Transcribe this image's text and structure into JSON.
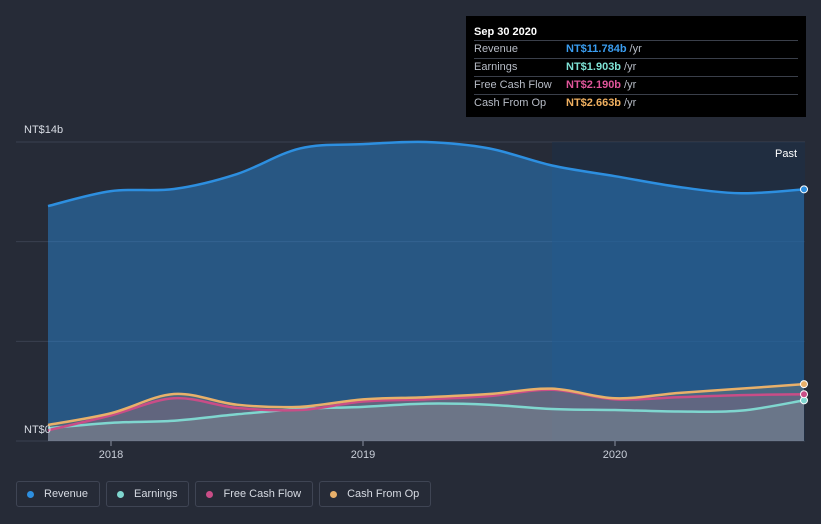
{
  "colors": {
    "revenue": "#2d8fe0",
    "earnings": "#7fd6cf",
    "free_cash_flow": "#c94d87",
    "cash_from_op": "#e8b06a",
    "grid": "#3a4050",
    "past_shade": "#1b2f48"
  },
  "tooltip": {
    "date": "Sep 30 2020",
    "rows": [
      {
        "name": "Revenue",
        "value": "NT$11.784b",
        "unit": "/yr",
        "color": "#3a9df0"
      },
      {
        "name": "Earnings",
        "value": "NT$1.903b",
        "unit": "/yr",
        "color": "#7fe3d6"
      },
      {
        "name": "Free Cash Flow",
        "value": "NT$2.190b",
        "unit": "/yr",
        "color": "#e0559a"
      },
      {
        "name": "Cash From Op",
        "value": "NT$2.663b",
        "unit": "/yr",
        "color": "#f0b060"
      }
    ]
  },
  "legend": [
    {
      "label": "Revenue",
      "color": "#2d8fe0"
    },
    {
      "label": "Earnings",
      "color": "#7fd6cf"
    },
    {
      "label": "Free Cash Flow",
      "color": "#c94d87"
    },
    {
      "label": "Cash From Op",
      "color": "#e8b06a"
    }
  ],
  "chart_data": {
    "type": "area",
    "title": "",
    "ylabel": "",
    "xlabel": "",
    "y_top_label": "NT$14b",
    "y_bottom_label": "NT$0",
    "past_label": "Past",
    "ylim": [
      0,
      14
    ],
    "xlim": [
      2017.75,
      2020.75
    ],
    "xticks": [
      {
        "value": 2018,
        "label": "2018"
      },
      {
        "value": 2019,
        "label": "2019"
      },
      {
        "value": 2020,
        "label": "2020"
      }
    ],
    "past_start": 2019.75,
    "series": [
      {
        "name": "Revenue",
        "key": "revenue",
        "x": [
          2017.75,
          2018.0,
          2018.25,
          2018.5,
          2018.75,
          2019.0,
          2019.25,
          2019.5,
          2019.75,
          2020.0,
          2020.25,
          2020.5,
          2020.75
        ],
        "values": [
          11.0,
          11.7,
          11.8,
          12.5,
          13.7,
          13.9,
          14.0,
          13.7,
          12.9,
          12.4,
          11.9,
          11.6,
          11.784
        ]
      },
      {
        "name": "Earnings",
        "key": "earnings",
        "x": [
          2017.75,
          2018.0,
          2018.25,
          2018.5,
          2018.75,
          2019.0,
          2019.25,
          2019.5,
          2019.75,
          2020.0,
          2020.25,
          2020.5,
          2020.75
        ],
        "values": [
          0.6,
          0.85,
          0.95,
          1.25,
          1.5,
          1.6,
          1.75,
          1.7,
          1.5,
          1.45,
          1.38,
          1.42,
          1.903
        ]
      },
      {
        "name": "Free Cash Flow",
        "key": "free_cash_flow",
        "x": [
          2017.75,
          2018.0,
          2018.25,
          2018.5,
          2018.75,
          2019.0,
          2019.25,
          2019.5,
          2019.75,
          2020.0,
          2020.25,
          2020.5,
          2020.75
        ],
        "values": [
          0.5,
          1.2,
          2.0,
          1.55,
          1.45,
          1.85,
          1.95,
          2.1,
          2.4,
          1.95,
          2.05,
          2.15,
          2.19
        ]
      },
      {
        "name": "Cash From Op",
        "key": "cash_from_op",
        "x": [
          2017.75,
          2018.0,
          2018.25,
          2018.5,
          2018.75,
          2019.0,
          2019.25,
          2019.5,
          2019.75,
          2020.0,
          2020.25,
          2020.5,
          2020.75
        ],
        "values": [
          0.75,
          1.3,
          2.2,
          1.7,
          1.6,
          1.95,
          2.05,
          2.2,
          2.45,
          2.0,
          2.25,
          2.45,
          2.663
        ]
      }
    ]
  }
}
